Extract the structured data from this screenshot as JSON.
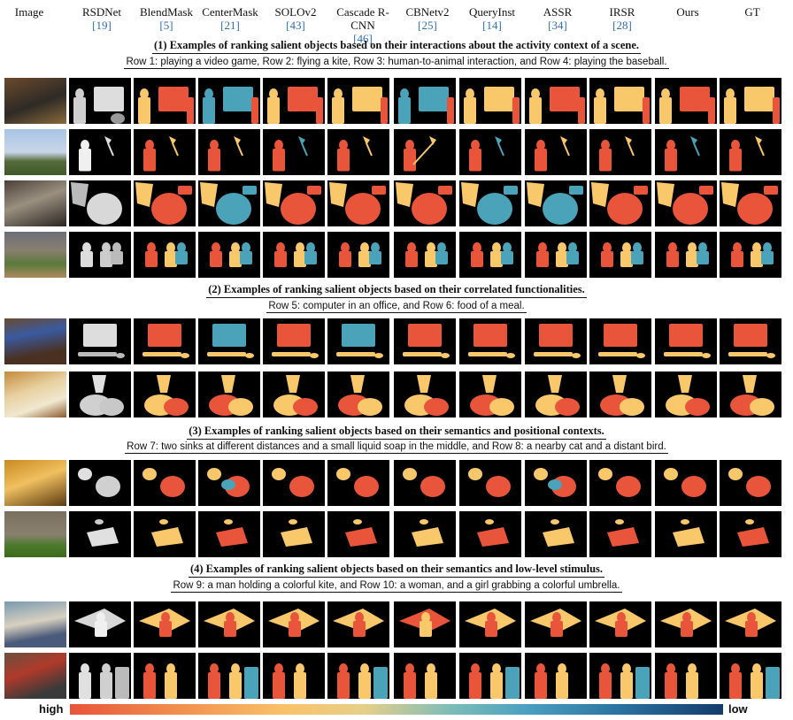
{
  "headers": [
    {
      "name": "Image",
      "ref": ""
    },
    {
      "name": "RSDNet",
      "ref": "[19]"
    },
    {
      "name": "BlendMask",
      "ref": "[5]"
    },
    {
      "name": "CenterMask",
      "ref": "[21]"
    },
    {
      "name": "SOLOv2",
      "ref": "[43]"
    },
    {
      "name": "Cascade R-CNN",
      "ref": "[46]"
    },
    {
      "name": "CBNetv2",
      "ref": "[25]"
    },
    {
      "name": "QueryInst",
      "ref": "[14]"
    },
    {
      "name": "ASSR",
      "ref": "[34]"
    },
    {
      "name": "IRSR",
      "ref": "[28]"
    },
    {
      "name": "Ours",
      "ref": ""
    },
    {
      "name": "GT",
      "ref": ""
    }
  ],
  "sections": [
    {
      "title": "(1) Examples of ranking salient objects based on their interactions about the activity context of a scene.",
      "subtitle": "Row 1: playing a video game, Row 2: flying a kite, Row 3: human-to-animal interaction, and Row 4: playing the baseball."
    },
    {
      "title": "(2) Examples of ranking salient objects based on their correlated functionalities.",
      "subtitle": "Row 5: computer in an office, and Row 6: food of a meal."
    },
    {
      "title": "(3) Examples of ranking salient objects based on their semantics and positional contexts.",
      "subtitle": "Row 7: two sinks at different distances and a small liquid soap in the middle, and Row 8: a nearby cat and a distant bird."
    },
    {
      "title": "(4) Examples of ranking salient objects based on their semantics and low-level stimulus.",
      "subtitle": "Row 9: a man holding a colorful kite, and Row 10: a woman, and a girl grabbing a colorful umbrella."
    }
  ],
  "legend": {
    "high": "high",
    "low": "low"
  },
  "colors": {
    "red": "#e8553a",
    "yellow": "#f9c86b",
    "teal": "#4aa3b8",
    "navy": "#2b4f86",
    "orange": "#f08a4b"
  }
}
